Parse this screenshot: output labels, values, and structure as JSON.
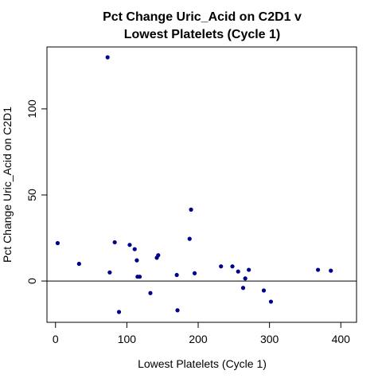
{
  "chart_data": {
    "type": "scatter",
    "title_lines": [
      "Pct Change Uric_Acid on C2D1 v",
      "Lowest Platelets (Cycle 1)"
    ],
    "xlabel": "Lowest Platelets (Cycle 1)",
    "ylabel": "Pct Change Uric_Acid on C2D1",
    "xlim": [
      -12,
      422
    ],
    "ylim": [
      -24,
      136
    ],
    "xticks": [
      0,
      100,
      200,
      300,
      400
    ],
    "yticks": [
      0,
      50,
      100
    ],
    "reference_line_y": 0,
    "grid": false,
    "point_color": "#00008B",
    "points": [
      {
        "x": 3,
        "y": 22
      },
      {
        "x": 33,
        "y": 10
      },
      {
        "x": 73,
        "y": 130
      },
      {
        "x": 76,
        "y": 5
      },
      {
        "x": 83,
        "y": 22.5
      },
      {
        "x": 89,
        "y": -18
      },
      {
        "x": 104,
        "y": 21
      },
      {
        "x": 111,
        "y": 18.5
      },
      {
        "x": 114,
        "y": 12
      },
      {
        "x": 115,
        "y": 2.5
      },
      {
        "x": 118,
        "y": 2.5
      },
      {
        "x": 133,
        "y": -7
      },
      {
        "x": 142,
        "y": 13.5
      },
      {
        "x": 144,
        "y": 15
      },
      {
        "x": 170,
        "y": 3.5
      },
      {
        "x": 171,
        "y": -17
      },
      {
        "x": 188,
        "y": 24.5
      },
      {
        "x": 190,
        "y": 41.5
      },
      {
        "x": 195,
        "y": 4.5
      },
      {
        "x": 232,
        "y": 8.5
      },
      {
        "x": 248,
        "y": 8.5
      },
      {
        "x": 256,
        "y": 5.5
      },
      {
        "x": 263,
        "y": -4
      },
      {
        "x": 266,
        "y": 1.5
      },
      {
        "x": 271,
        "y": 6.5
      },
      {
        "x": 292,
        "y": -5.5
      },
      {
        "x": 302,
        "y": -12
      },
      {
        "x": 368,
        "y": 6.5
      },
      {
        "x": 386,
        "y": 6
      }
    ]
  }
}
